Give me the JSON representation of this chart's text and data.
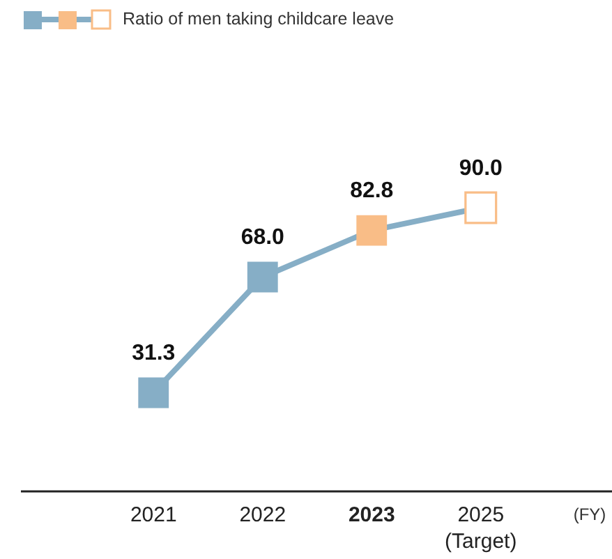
{
  "chart_data": {
    "type": "line",
    "categories": [
      "2021",
      "2022",
      "2023",
      "2025\n(Target)"
    ],
    "xlabel": "(FY)",
    "series": [
      {
        "name": "Ratio of men taking childcare leave",
        "color": "#86aec6",
        "values": [
          31.3,
          68.0,
          82.8,
          90.0
        ],
        "colors": [
          "#86aec6",
          "#86aec6",
          "#f9bd87",
          "#ffffff"
        ],
        "value_labels": [
          "31.3",
          "68.0",
          "82.8",
          "90.0"
        ]
      }
    ],
    "marker": "square",
    "line_style": "solid",
    "legend": "top left"
  }
}
